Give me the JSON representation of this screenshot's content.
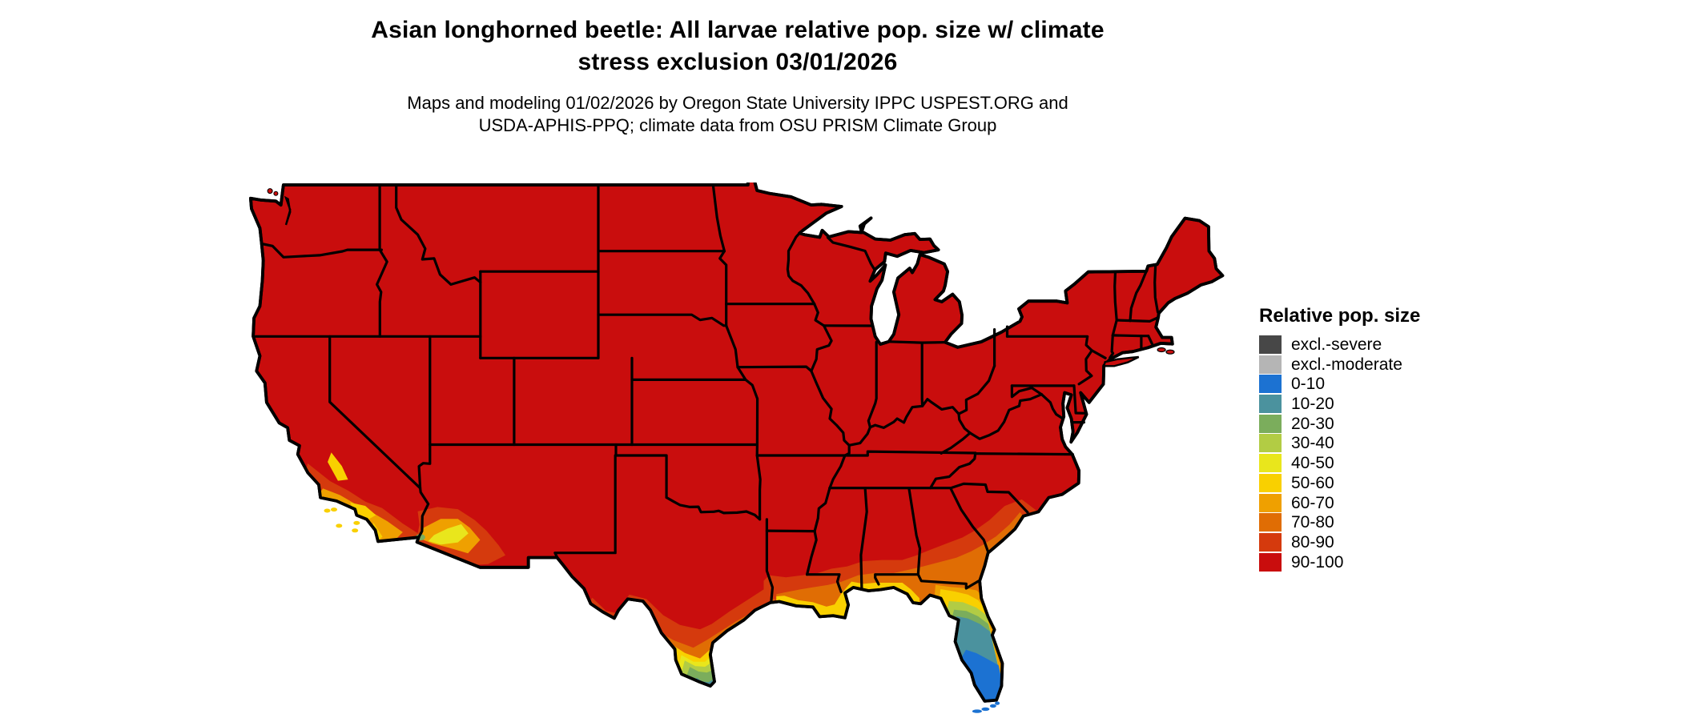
{
  "header": {
    "title_line1": "Asian longhorned beetle: All larvae relative pop. size w/ climate",
    "title_line2": "stress exclusion 03/01/2026",
    "subtitle_line1": "Maps and modeling 01/02/2026 by Oregon State University IPPC USPEST.ORG and",
    "subtitle_line2": "USDA-APHIS-PPQ; climate data from OSU PRISM Climate Group"
  },
  "legend": {
    "title": "Relative pop. size",
    "items": [
      {
        "key": "excl-severe",
        "label": "excl.-severe",
        "color": "#474747"
      },
      {
        "key": "excl-moderate",
        "label": "excl.-moderate",
        "color": "#b5b5b5"
      },
      {
        "key": "0-10",
        "label": "0-10",
        "color": "#1c72d2"
      },
      {
        "key": "10-20",
        "label": "10-20",
        "color": "#4b929e"
      },
      {
        "key": "20-30",
        "label": "20-30",
        "color": "#7bad5c"
      },
      {
        "key": "30-40",
        "label": "30-40",
        "color": "#b2cc44"
      },
      {
        "key": "40-50",
        "label": "40-50",
        "color": "#e9e61c"
      },
      {
        "key": "50-60",
        "label": "50-60",
        "color": "#f9d000"
      },
      {
        "key": "60-70",
        "label": "60-70",
        "color": "#efa000"
      },
      {
        "key": "70-80",
        "label": "70-80",
        "color": "#e06d04"
      },
      {
        "key": "80-90",
        "label": "80-90",
        "color": "#d53a0d"
      },
      {
        "key": "90-100",
        "label": "90-100",
        "color": "#c90d0d"
      }
    ]
  },
  "map": {
    "region": "Contiguous United States",
    "dominant_class": "90-100",
    "base_color": "#c90d0d",
    "border_color": "#000000",
    "water_color": "#ffffff"
  }
}
